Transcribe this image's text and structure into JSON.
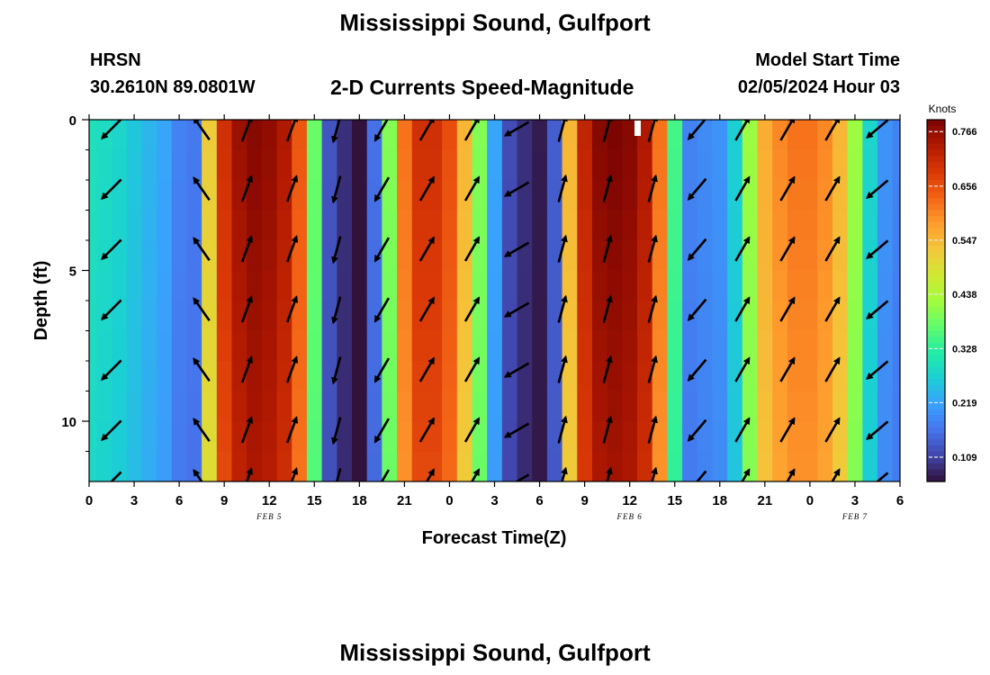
{
  "page": {
    "title": "Mississippi Sound, Gulfport",
    "station_code": "HRSN",
    "station_coords": "30.2610N  89.0801W",
    "subtitle": "2-D Currents Speed-Magnitude",
    "model_start_label": "Model Start Time",
    "model_start_value": "02/05/2024 Hour 03",
    "footer_title": "Mississippi Sound, Gulfport"
  },
  "chart_data": {
    "type": "heatmap",
    "title": "2-D Currents Speed-Magnitude",
    "xlabel": "Forecast Time(Z)",
    "ylabel": "Depth (ft)",
    "colorbar_label": "Knots",
    "x_unit": "forecast hours from Feb 5 00Z",
    "x_tick_labels": [
      "0",
      "3",
      "6",
      "9",
      "12",
      "15",
      "18",
      "21",
      "0",
      "3",
      "6",
      "9",
      "12",
      "15",
      "18",
      "21",
      "0",
      "3",
      "6"
    ],
    "x_ticks": [
      0,
      3,
      6,
      9,
      12,
      15,
      18,
      21,
      24,
      27,
      30,
      33,
      36,
      39,
      42,
      45,
      48,
      51,
      54
    ],
    "date_labels": [
      {
        "text": "FEB 5",
        "x": 12
      },
      {
        "text": "FEB 6",
        "x": 36
      },
      {
        "text": "FEB 7",
        "x": 51
      }
    ],
    "xlim": [
      0,
      54
    ],
    "y_tick_labels": [
      "0",
      "5",
      "10"
    ],
    "y_ticks": [
      0,
      5,
      10
    ],
    "ylim": [
      0,
      12
    ],
    "colorbar_ticks": [
      "0.109",
      "0.219",
      "0.328",
      "0.438",
      "0.547",
      "0.656",
      "0.766"
    ],
    "colorbar_range": [
      0.06,
      0.79
    ],
    "speed_by_hour": [
      0.3,
      0.29,
      0.28,
      0.26,
      0.24,
      0.22,
      0.18,
      0.17,
      0.52,
      0.7,
      0.76,
      0.78,
      0.77,
      0.74,
      0.65,
      0.38,
      0.13,
      0.09,
      0.06,
      0.16,
      0.4,
      0.62,
      0.7,
      0.7,
      0.66,
      0.55,
      0.4,
      0.22,
      0.12,
      0.09,
      0.07,
      0.14,
      0.55,
      0.72,
      0.78,
      0.79,
      0.78,
      0.74,
      0.62,
      0.35,
      0.18,
      0.19,
      0.2,
      0.27,
      0.42,
      0.56,
      0.6,
      0.62,
      0.62,
      0.6,
      0.55,
      0.42,
      0.28,
      0.2,
      0.18
    ],
    "vector_times": [
      1.5,
      7.5,
      10.5,
      13.5,
      16.5,
      19.5,
      22.5,
      25.5,
      28.5,
      31.5,
      34.5,
      37.5,
      40.5,
      43.5,
      46.5,
      49.5,
      52.5
    ],
    "vector_depths": [
      0.3,
      2.3,
      4.3,
      6.3,
      8.3,
      10.3,
      12
    ],
    "vector_direction_deg": [
      225,
      125,
      70,
      70,
      255,
      240,
      60,
      60,
      210,
      75,
      75,
      75,
      230,
      60,
      60,
      60,
      220
    ],
    "grid": false,
    "legend": "colorbar-right"
  },
  "colors": {
    "colormap": [
      "#30123b",
      "#4145ab",
      "#4675ed",
      "#39a2fc",
      "#1bcfd4",
      "#24eca6",
      "#61fc6c",
      "#a4fc3b",
      "#d1e834",
      "#f3c63a",
      "#fe9b2d",
      "#f36315",
      "#d93806",
      "#b11901",
      "#7a0402"
    ]
  }
}
